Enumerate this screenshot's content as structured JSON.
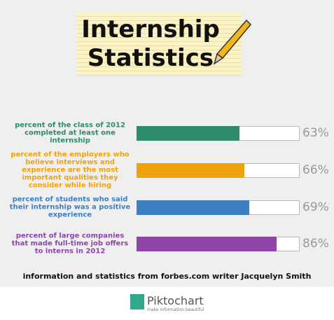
{
  "chart_data": {
    "type": "bar",
    "orientation": "horizontal",
    "title": "Internship Statistics",
    "categories": [
      "percent of the class of 2012 completed at least one internship",
      "percent of the employers who believe interviews and experience are the most important qualities they consider while hiring",
      "percent of students who said their internship was a positive experience",
      "percent of large companies that made full-time job offers to interns in 2012"
    ],
    "values": [
      63,
      66,
      69,
      86
    ],
    "value_labels": [
      "63%",
      "66%",
      "69%",
      "86%"
    ],
    "colors": [
      "#2e8b6b",
      "#efa20c",
      "#3d80c2",
      "#8d46a8"
    ],
    "xlim": [
      0,
      100
    ]
  },
  "footer": {
    "source": "information and statistics from forbes.com writer Jacquelyn Smith",
    "logo": "Piktochart",
    "tagline": "make information beautiful"
  }
}
